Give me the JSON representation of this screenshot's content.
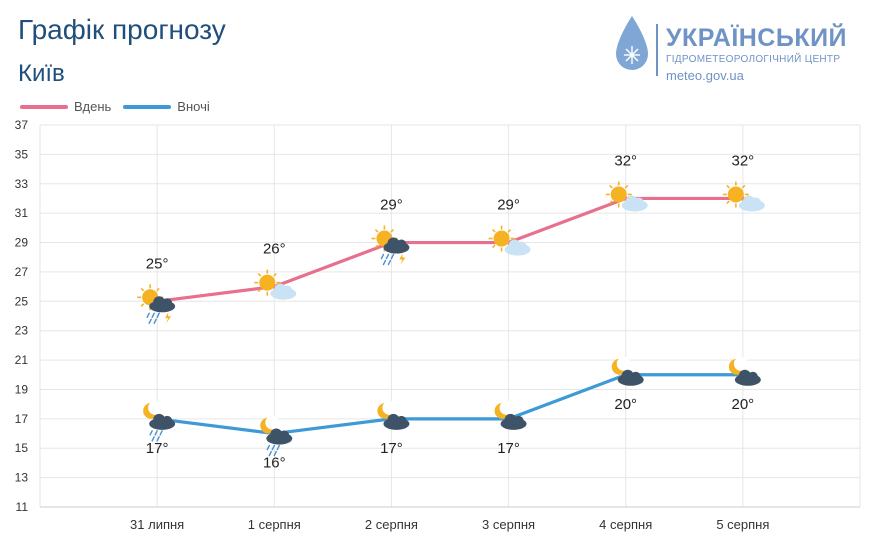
{
  "header": {
    "title": "Графік прогнозу",
    "city": "Київ"
  },
  "logo": {
    "name": "УКРАЇНСЬКИЙ",
    "subtitle": "ГІДРОМЕТЕОРОЛОГІЧНИЙ ЦЕНТР",
    "url": "meteo.gov.ua",
    "color": "#6f93c4"
  },
  "legend": [
    {
      "label": "Вдень",
      "color": "#e8708e"
    },
    {
      "label": "Вночі",
      "color": "#3d9ad6"
    }
  ],
  "chart_data": {
    "type": "line",
    "categories": [
      "31 липня",
      "1 серпня",
      "2 серпня",
      "3 серпня",
      "4 серпня",
      "5 серпня"
    ],
    "yticks": [
      11,
      13,
      15,
      17,
      19,
      21,
      23,
      25,
      27,
      29,
      31,
      33,
      35,
      37
    ],
    "ylim": [
      11,
      37
    ],
    "grid": true,
    "legend_position": "top-left",
    "series": [
      {
        "name": "Вдень",
        "color": "#e8708e",
        "values": [
          25,
          26,
          29,
          29,
          32,
          32
        ],
        "labels": [
          "25°",
          "26°",
          "29°",
          "29°",
          "32°",
          "32°"
        ],
        "icons": [
          "sun-cloud-thunder-rain-icon",
          "sun-cloud-icon",
          "sun-cloud-thunder-rain-icon",
          "sun-cloud-icon",
          "sun-cloud-icon",
          "sun-cloud-icon"
        ]
      },
      {
        "name": "Вночі",
        "color": "#3d9ad6",
        "values": [
          17,
          16,
          17,
          17,
          20,
          20
        ],
        "labels": [
          "17°",
          "16°",
          "17°",
          "17°",
          "20°",
          "20°"
        ],
        "icons": [
          "moon-cloud-rain-icon",
          "moon-cloud-rain-icon",
          "moon-cloud-icon",
          "moon-cloud-icon",
          "moon-cloud-icon",
          "moon-cloud-icon"
        ]
      }
    ]
  }
}
